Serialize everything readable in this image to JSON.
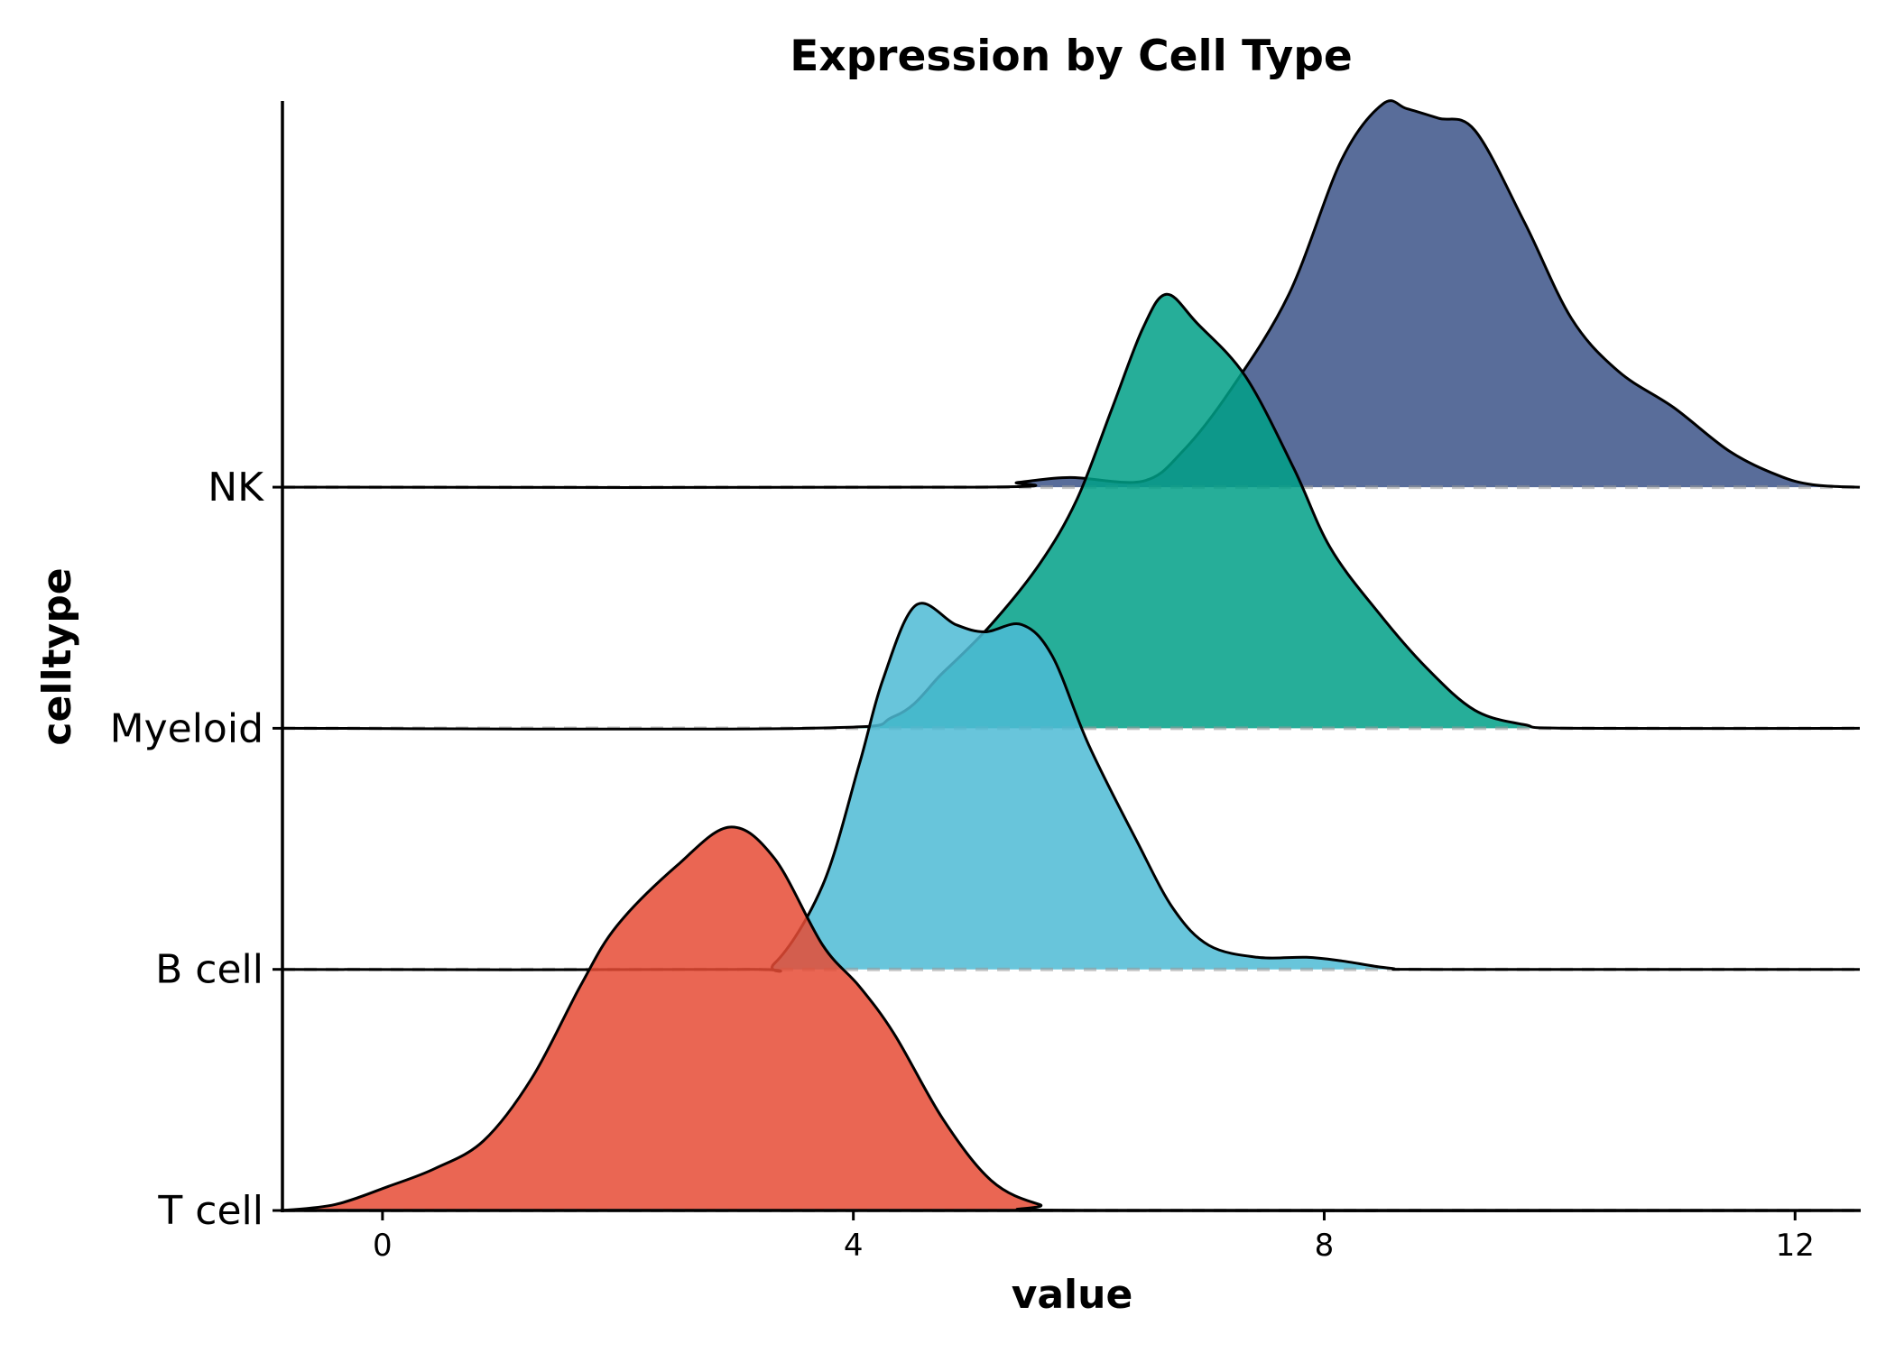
{
  "chart_data": {
    "type": "ridgeline",
    "title": "Expression by Cell Type",
    "xlabel": "value",
    "ylabel": "celltype",
    "xlim": [
      -0.85,
      12.55
    ],
    "xticks": [
      0,
      4,
      8,
      12
    ],
    "xtick_labels": [
      "0",
      "4",
      "8",
      "12"
    ],
    "grid": false,
    "fill_alpha": 0.85,
    "categories": [
      "T cell",
      "B cell",
      "Myeloid",
      "NK"
    ],
    "series": [
      {
        "name": "T cell",
        "color": "#E64B35",
        "density": [
          [
            -0.85,
            0.0
          ],
          [
            -0.4,
            0.025
          ],
          [
            0.05,
            0.1
          ],
          [
            0.45,
            0.175
          ],
          [
            0.86,
            0.29
          ],
          [
            1.27,
            0.55
          ],
          [
            1.68,
            0.93
          ],
          [
            1.99,
            1.18
          ],
          [
            2.5,
            1.43
          ],
          [
            2.95,
            1.59
          ],
          [
            3.33,
            1.46
          ],
          [
            3.74,
            1.1
          ],
          [
            4.05,
            0.93
          ],
          [
            4.35,
            0.73
          ],
          [
            4.76,
            0.38
          ],
          [
            5.17,
            0.125
          ],
          [
            5.58,
            0.025
          ],
          [
            6.0,
            0.0
          ],
          [
            12.55,
            0.0
          ]
        ]
      },
      {
        "name": "B cell",
        "color": "#4DBBD5",
        "density": [
          [
            -0.85,
            0.0
          ],
          [
            3.0,
            0.0
          ],
          [
            3.33,
            0.025
          ],
          [
            3.74,
            0.35
          ],
          [
            4.05,
            0.85
          ],
          [
            4.25,
            1.2
          ],
          [
            4.53,
            1.51
          ],
          [
            4.87,
            1.43
          ],
          [
            5.12,
            1.4
          ],
          [
            5.43,
            1.43
          ],
          [
            5.69,
            1.3
          ],
          [
            6.0,
            0.93
          ],
          [
            6.41,
            0.53
          ],
          [
            6.72,
            0.25
          ],
          [
            7.02,
            0.1
          ],
          [
            7.43,
            0.05
          ],
          [
            7.85,
            0.05
          ],
          [
            8.15,
            0.035
          ],
          [
            8.56,
            0.005
          ],
          [
            9.0,
            0.0
          ],
          [
            12.55,
            0.0
          ]
        ]
      },
      {
        "name": "Myeloid",
        "color": "#00A087",
        "density": [
          [
            -0.85,
            0.0
          ],
          [
            3.6,
            0.0
          ],
          [
            4.35,
            0.05
          ],
          [
            4.76,
            0.23
          ],
          [
            5.17,
            0.43
          ],
          [
            5.58,
            0.68
          ],
          [
            5.9,
            0.95
          ],
          [
            6.2,
            1.33
          ],
          [
            6.46,
            1.66
          ],
          [
            6.66,
            1.8
          ],
          [
            6.92,
            1.68
          ],
          [
            7.33,
            1.46
          ],
          [
            7.74,
            1.08
          ],
          [
            8.05,
            0.75
          ],
          [
            8.46,
            0.48
          ],
          [
            8.87,
            0.25
          ],
          [
            9.28,
            0.075
          ],
          [
            9.7,
            0.015
          ],
          [
            10.1,
            0.0
          ],
          [
            12.55,
            0.0
          ]
        ]
      },
      {
        "name": "NK",
        "color": "#3C5488",
        "density": [
          [
            -0.85,
            0.0
          ],
          [
            5.0,
            0.0
          ],
          [
            5.4,
            0.02
          ],
          [
            5.84,
            0.04
          ],
          [
            6.46,
            0.025
          ],
          [
            6.8,
            0.15
          ],
          [
            7.2,
            0.4
          ],
          [
            7.7,
            0.8
          ],
          [
            8.15,
            1.36
          ],
          [
            8.5,
            1.59
          ],
          [
            8.7,
            1.57
          ],
          [
            8.97,
            1.53
          ],
          [
            9.28,
            1.48
          ],
          [
            9.7,
            1.1
          ],
          [
            10.1,
            0.7
          ],
          [
            10.5,
            0.48
          ],
          [
            10.97,
            0.33
          ],
          [
            11.44,
            0.15
          ],
          [
            11.85,
            0.05
          ],
          [
            12.15,
            0.01
          ],
          [
            12.55,
            0.0
          ]
        ]
      }
    ]
  }
}
